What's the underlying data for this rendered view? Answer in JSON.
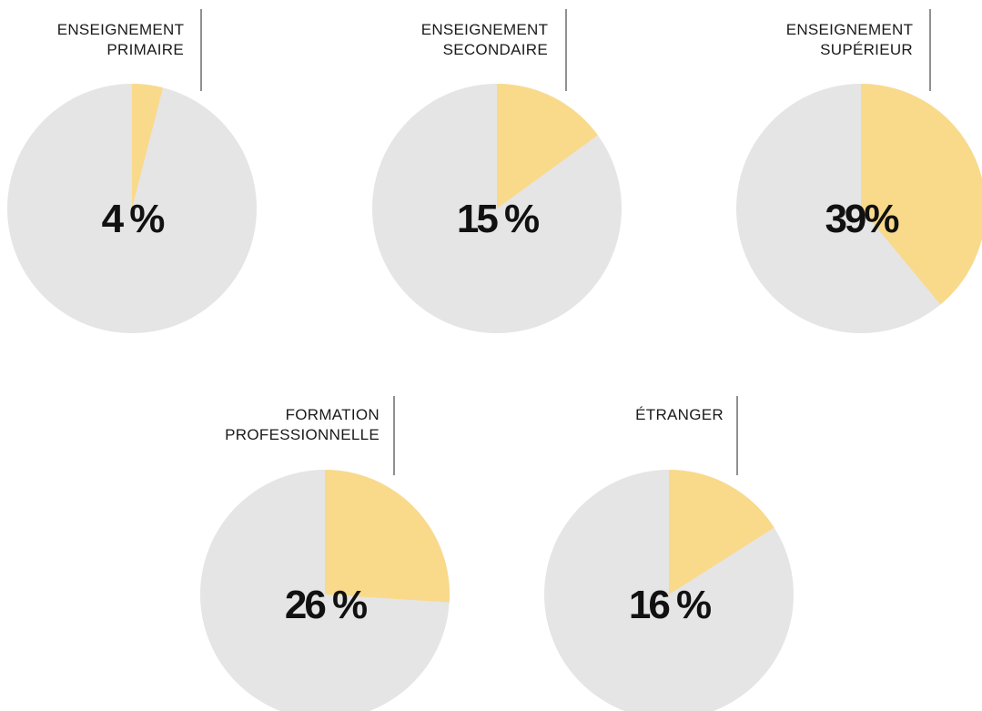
{
  "chart_data": [
    {
      "type": "pie",
      "title": "ENSEIGNEMENT PRIMAIRE",
      "values": [
        4
      ],
      "value_labels": [
        "4 %"
      ],
      "color": "#f9da8b",
      "rest_color": "#e5e5e6"
    },
    {
      "type": "pie",
      "title": "ENSEIGNEMENT SECONDAIRE",
      "values": [
        15
      ],
      "value_labels": [
        "15 %"
      ],
      "color": "#f9da8b",
      "rest_color": "#e5e5e6"
    },
    {
      "type": "pie",
      "title": "ENSEIGNEMENT SUPÉRIEUR",
      "values": [
        39
      ],
      "value_labels": [
        "39%"
      ],
      "color": "#f9da8b",
      "rest_color": "#e5e5e6"
    },
    {
      "type": "pie",
      "title": "FORMATION PROFESSIONNELLE",
      "values": [
        26
      ],
      "value_labels": [
        "26 %"
      ],
      "color": "#f9da8b",
      "rest_color": "#e5e5e6"
    },
    {
      "type": "pie",
      "title": "ÉTRANGER",
      "values": [
        16
      ],
      "value_labels": [
        "16 %"
      ],
      "color": "#f9da8b",
      "rest_color": "#e5e5e6"
    }
  ]
}
